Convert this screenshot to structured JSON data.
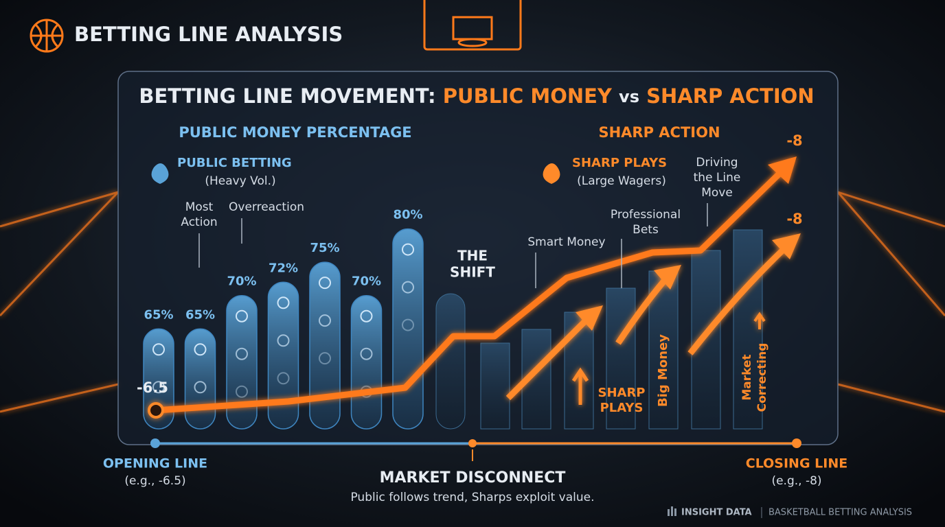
{
  "header": {
    "title": "BETTING LINE ANALYSIS"
  },
  "chart_data": {
    "type": "bar",
    "title": [
      "BETTING LINE MOVEMENT:",
      "PUBLIC MONEY",
      "vs",
      "SHARP ACTION"
    ],
    "left_heading": "PUBLIC MONEY PERCENTAGE",
    "right_heading": "SHARP ACTION",
    "values": [
      65,
      65,
      70,
      72,
      75,
      70,
      80
    ],
    "value_labels": [
      "65%",
      "65%",
      "70%",
      "72%",
      "75%",
      "70%",
      "80%"
    ],
    "color": "#3f86c0",
    "ylim": [
      50,
      85
    ],
    "public_legend": {
      "title": "PUBLIC BETTING",
      "note": "(Heavy Vol.)"
    },
    "sharp_legend": {
      "title": "SHARP PLAYS",
      "note": "(Large Wagers)"
    },
    "annotations": {
      "most_action": [
        "Most",
        "Action"
      ],
      "overreaction": "Overreaction",
      "shift": [
        "THE",
        "SHIFT"
      ],
      "smart_money": "Smart Money",
      "professional": [
        "Professional",
        "Bets"
      ],
      "driving": [
        "Driving",
        "the Line",
        "Move"
      ],
      "sharp_plays": [
        "SHARP",
        "PLAYS"
      ],
      "big_money": "Big Money",
      "market_correcting": [
        "Market",
        "Correcting"
      ],
      "open_value": "-6.5",
      "close_value_top": "-8",
      "close_value_mid": "-8"
    }
  },
  "timeline": {
    "opening": {
      "title": "OPENING LINE",
      "note": "(e.g., -6.5)"
    },
    "middle": {
      "title": "MARKET DISCONNECT",
      "note": "Public follows trend, Sharps exploit value."
    },
    "closing": {
      "title": "CLOSING LINE",
      "note": "(e.g., -8)"
    }
  },
  "footer": {
    "brand": "INSIGHT DATA",
    "caption": "BASKETBALL BETTING ANALYSIS"
  }
}
